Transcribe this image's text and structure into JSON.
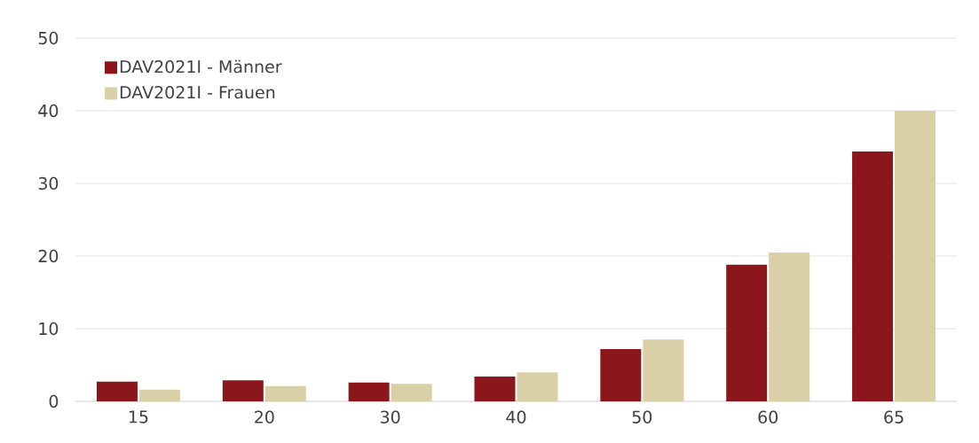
{
  "chart_data": {
    "type": "bar",
    "categories": [
      "15",
      "20",
      "30",
      "40",
      "50",
      "60",
      "65"
    ],
    "series": [
      {
        "name": "DAV2021I - Männer",
        "color": "#8b171c",
        "values": [
          2.7,
          2.9,
          2.6,
          3.4,
          7.2,
          18.8,
          34.4
        ]
      },
      {
        "name": "DAV2021I - Frauen",
        "color": "#d9d0a8",
        "values": [
          1.6,
          2.1,
          2.4,
          4.0,
          8.5,
          20.5,
          40.0
        ]
      }
    ],
    "ylim": [
      0,
      50
    ],
    "yticks": [
      0,
      10,
      20,
      30,
      40,
      50
    ],
    "grid": "y",
    "legend": "top left"
  }
}
